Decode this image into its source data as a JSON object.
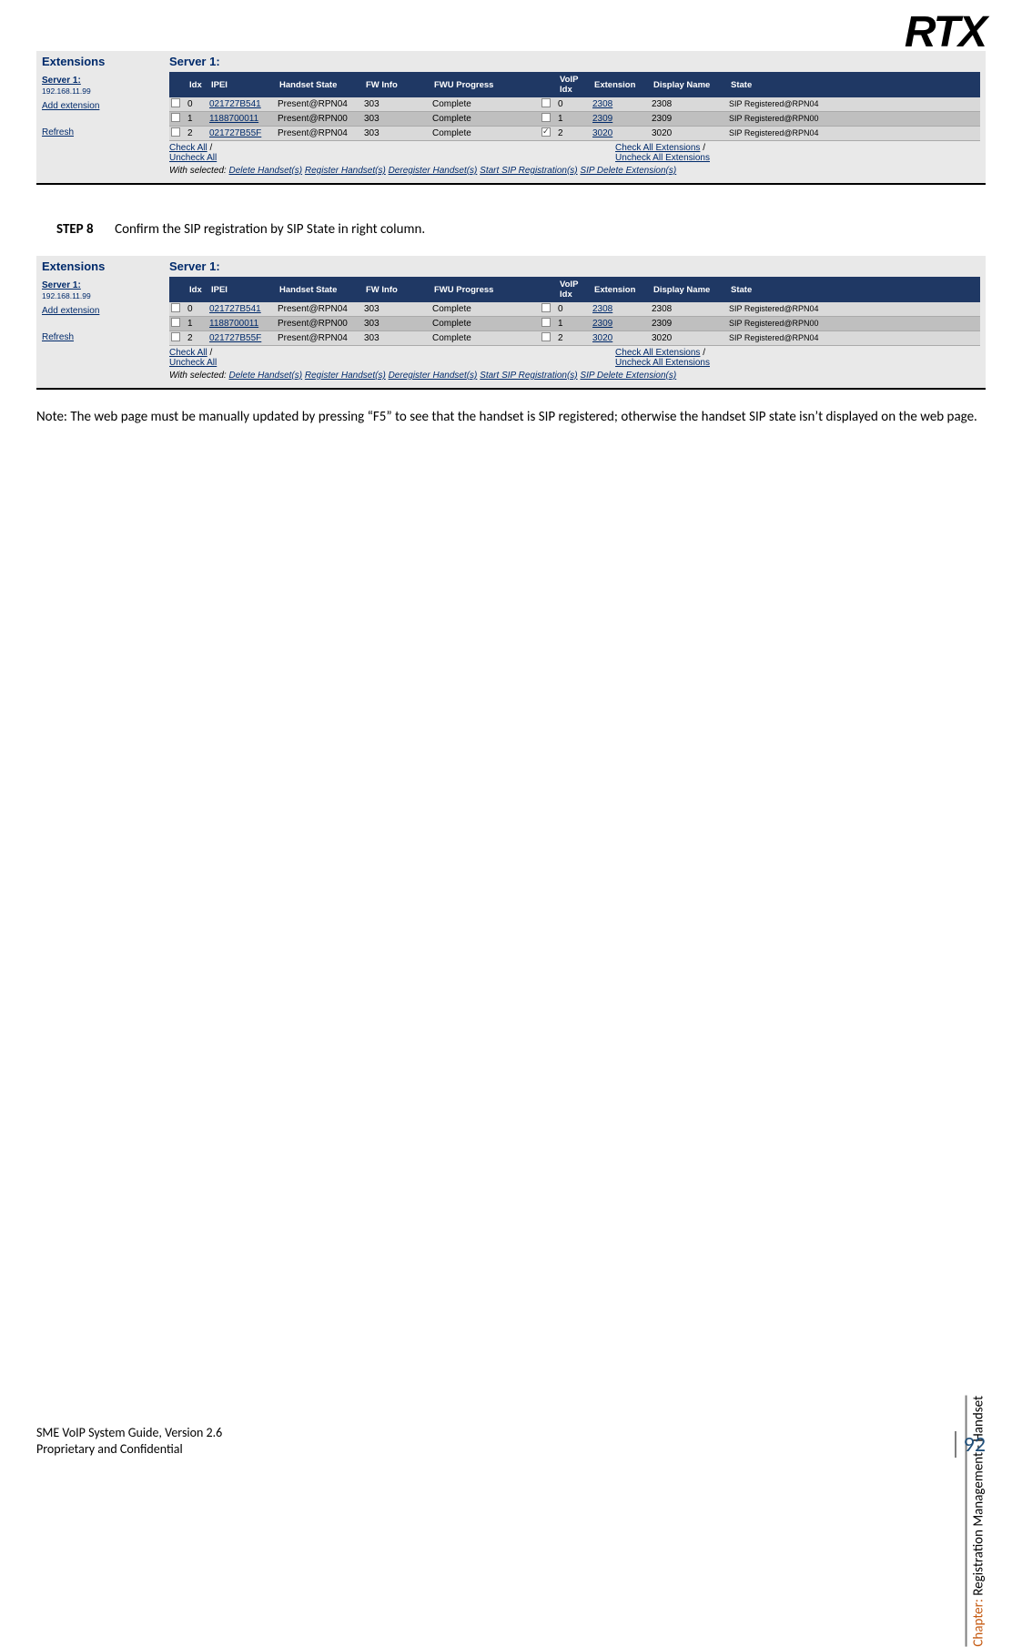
{
  "logo": "RTX",
  "sidebar": {
    "extensions": "Extensions",
    "server1": "Server 1:",
    "server_ip": "192.168.11.99",
    "add_extension": "Add extension",
    "refresh": "Refresh"
  },
  "main": {
    "server_title": "Server 1:",
    "headers": {
      "cb1": "",
      "idx": "Idx",
      "ipei": "IPEI",
      "handset_state": "Handset State",
      "fw_info": "FW Info",
      "fwu_progress": "FWU Progress",
      "cb2": "",
      "voip_idx": "VoIP Idx",
      "extension": "Extension",
      "display_name": "Display Name",
      "state": "State"
    },
    "rows_a": [
      {
        "idx": "0",
        "ipei": "021727B541",
        "hs": "Present@RPN04",
        "fw": "303",
        "fwu": "Complete",
        "chk2": false,
        "vidx": "0",
        "ext": "2308",
        "dn": "2308",
        "state": "SIP Registered@RPN04"
      },
      {
        "idx": "1",
        "ipei": "1188700011",
        "hs": "Present@RPN00",
        "fw": "303",
        "fwu": "Complete",
        "chk2": false,
        "vidx": "1",
        "ext": "2309",
        "dn": "2309",
        "state": "SIP Registered@RPN00"
      },
      {
        "idx": "2",
        "ipei": "021727B55F",
        "hs": "Present@RPN04",
        "fw": "303",
        "fwu": "Complete",
        "chk2": true,
        "vidx": "2",
        "ext": "3020",
        "dn": "3020",
        "state": "SIP Registered@RPN04"
      }
    ],
    "rows_b": [
      {
        "idx": "0",
        "ipei": "021727B541",
        "hs": "Present@RPN04",
        "fw": "303",
        "fwu": "Complete",
        "chk2": false,
        "vidx": "0",
        "ext": "2308",
        "dn": "2308",
        "state": "SIP Registered@RPN04"
      },
      {
        "idx": "1",
        "ipei": "1188700011",
        "hs": "Present@RPN00",
        "fw": "303",
        "fwu": "Complete",
        "chk2": false,
        "vidx": "1",
        "ext": "2309",
        "dn": "2309",
        "state": "SIP Registered@RPN00"
      },
      {
        "idx": "2",
        "ipei": "021727B55F",
        "hs": "Present@RPN04",
        "fw": "303",
        "fwu": "Complete",
        "chk2": false,
        "vidx": "2",
        "ext": "3020",
        "dn": "3020",
        "state": "SIP Registered@RPN04"
      }
    ],
    "check_all": "Check All",
    "uncheck_all": "Uncheck All",
    "check_all_ext": "Check All Extensions",
    "uncheck_all_ext": "Uncheck All Extensions",
    "with_selected": "With selected:",
    "delete_hs": "Delete Handset(s)",
    "register_hs": "Register Handset(s)",
    "deregister_hs": "Deregister Handset(s)",
    "start_sip": "Start SIP Registration(s)",
    "sip_delete": "SIP Delete Extension(s)"
  },
  "step": {
    "label": "STEP 8",
    "text": "Confirm the SIP registration by SIP State in right column."
  },
  "note": "Note: The web page must be manually updated by pressing “F5” to see that the handset is SIP registered; otherwise the handset SIP state isn’t displayed on the web page.",
  "chapter": {
    "label": "Chapter:",
    "text": " Registration Management - Handset"
  },
  "footer": {
    "line1": "SME VoIP System Guide, Version 2.6",
    "line2": "Proprietary and Confidential",
    "page": "92"
  },
  "colors": {
    "header_bg": "#1f3864",
    "link": "#002a6b",
    "page_no": "#1f4e79",
    "chapter_label": "#c55a11"
  }
}
